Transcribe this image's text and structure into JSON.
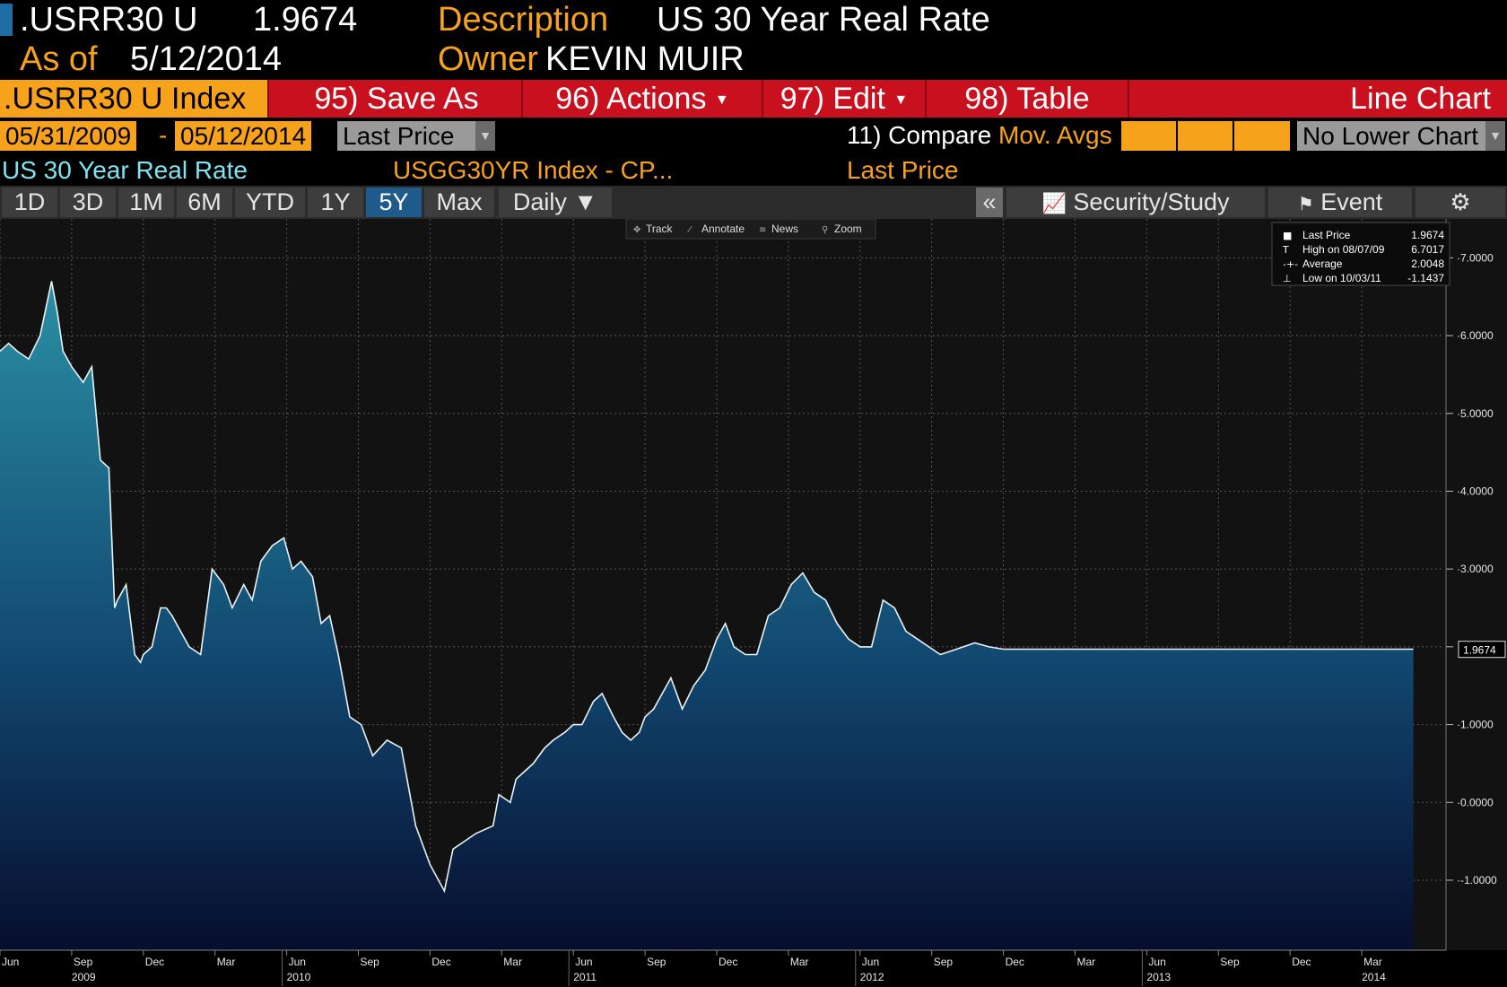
{
  "header": {
    "ticker": ".USRR30 U",
    "last": "1.9674",
    "description_label": "Description",
    "description": "US 30 Year Real Rate",
    "asof_label": "As of",
    "asof": "5/12/2014",
    "owner_label": "Owner",
    "owner": "KEVIN MUIR"
  },
  "menu": {
    "index": ".USRR30 U Index",
    "save": "95) Save As",
    "actions": "96) Actions",
    "edit": "97) Edit",
    "table": "98) Table",
    "chart_type": "Line Chart"
  },
  "controls": {
    "start": "05/31/2009",
    "dash": "-",
    "end": "05/12/2014",
    "field": "Last Price",
    "compare": "11) Compare",
    "movavgs": "Mov. Avgs",
    "lower": "No Lower Chart"
  },
  "legend_row": {
    "series": "US 30 Year Real Rate",
    "source": "USGG30YR Index - CP...",
    "field": "Last Price"
  },
  "toolbar": {
    "periods": [
      "1D",
      "3D",
      "1M",
      "6M",
      "YTD",
      "1Y",
      "5Y",
      "Max"
    ],
    "active": "5Y",
    "freq": "Daily ▼",
    "collapse": "«",
    "security": "Security/Study",
    "event": "Event"
  },
  "subtools": [
    "Track",
    "Annotate",
    "News",
    "Zoom"
  ],
  "stats": {
    "rows": [
      {
        "label": "Last Price",
        "value": "1.9674"
      },
      {
        "label": "High on 08/07/09",
        "value": "6.7017"
      },
      {
        "label": "Average",
        "value": "2.0048"
      },
      {
        "label": "Low on 10/03/11",
        "value": "-1.1437"
      }
    ]
  },
  "colors": {
    "accent": "#f7a21b",
    "menu": "#c8101e",
    "cyan": "#7fe3f0",
    "active_tab": "#1e5a8a"
  },
  "chart_data": {
    "type": "area",
    "ylim": [
      -1.9,
      7.5
    ],
    "yticks": [
      "7.0000",
      "6.0000",
      "5.0000",
      "4.0000",
      "3.0000",
      "2.0000",
      "1.0000",
      "0.0000",
      "-1.0000"
    ],
    "ytick_values": [
      7,
      6,
      5,
      4,
      3,
      2,
      1,
      0,
      -1
    ],
    "last_label": "1.9674",
    "last_value": 1.9674,
    "grid": true,
    "x_months": [
      "Jun",
      "Sep",
      "Dec",
      "Mar",
      "Jun",
      "Sep",
      "Dec",
      "Mar",
      "Jun",
      "Sep",
      "Dec",
      "Mar",
      "Jun",
      "Sep",
      "Dec",
      "Mar",
      "Jun",
      "Sep",
      "Dec",
      "Mar"
    ],
    "x_month_t": [
      0.0,
      0.25,
      0.5,
      0.75,
      1.0,
      1.25,
      1.5,
      1.75,
      2.0,
      2.25,
      2.5,
      2.75,
      3.0,
      3.25,
      3.5,
      3.75,
      4.0,
      4.25,
      4.5,
      4.75
    ],
    "x_years": [
      "2009",
      "2010",
      "2011",
      "2012",
      "2013",
      "2014"
    ],
    "x_year_t": [
      0.25,
      1.0,
      2.0,
      3.0,
      4.0,
      4.75
    ],
    "series": [
      {
        "t": [
          0.0,
          0.03,
          0.06,
          0.1,
          0.14,
          0.18,
          0.2,
          0.22,
          0.25,
          0.29,
          0.32,
          0.35,
          0.38,
          0.4,
          0.41,
          0.44,
          0.47,
          0.49,
          0.5,
          0.53,
          0.56,
          0.58,
          0.6,
          0.63,
          0.66,
          0.7,
          0.74,
          0.78,
          0.81,
          0.85,
          0.88,
          0.91,
          0.95,
          0.99,
          1.02,
          1.05,
          1.09,
          1.12,
          1.15,
          1.18,
          1.22,
          1.26,
          1.3,
          1.35,
          1.4,
          1.45,
          1.5,
          1.55,
          1.58,
          1.62,
          1.66,
          1.72,
          1.74,
          1.78,
          1.8,
          1.83,
          1.86,
          1.9,
          1.93,
          1.97,
          2.0,
          2.03,
          2.07,
          2.1,
          2.14,
          2.17,
          2.2,
          2.23,
          2.25,
          2.28,
          2.31,
          2.34,
          2.38,
          2.42,
          2.46,
          2.5,
          2.53,
          2.56,
          2.6,
          2.64,
          2.68,
          2.72,
          2.76,
          2.8,
          2.84,
          2.88,
          2.92,
          2.96,
          3.0,
          3.04,
          3.08,
          3.12,
          3.16,
          3.2,
          3.24,
          3.28,
          3.32,
          3.36,
          3.4,
          3.45,
          3.5,
          3.55,
          3.6,
          3.65,
          3.7,
          3.75,
          3.79,
          3.83,
          3.87,
          3.9,
          3.94,
          3.98,
          4.02,
          4.06,
          4.1,
          4.14,
          4.18,
          4.22,
          4.26,
          4.3,
          4.34,
          4.38,
          4.42,
          4.46,
          4.5,
          4.53,
          4.56,
          4.6,
          4.64,
          4.68,
          4.71,
          4.74,
          4.77,
          4.8,
          4.83,
          4.86,
          4.9,
          4.93
        ],
        "y": [
          5.8,
          5.9,
          5.8,
          5.7,
          6.0,
          6.7,
          6.3,
          5.8,
          5.6,
          5.4,
          5.6,
          4.4,
          4.3,
          2.5,
          2.6,
          2.8,
          1.9,
          1.8,
          1.9,
          2.0,
          2.5,
          2.5,
          2.4,
          2.2,
          2.0,
          1.9,
          3.0,
          2.8,
          2.5,
          2.8,
          2.6,
          3.1,
          3.3,
          3.4,
          3.0,
          3.1,
          2.9,
          2.3,
          2.4,
          1.9,
          1.1,
          1.0,
          0.6,
          0.8,
          0.7,
          -0.3,
          -0.8,
          -1.14,
          -0.6,
          -0.5,
          -0.4,
          -0.3,
          0.1,
          0.0,
          0.3,
          0.4,
          0.5,
          0.7,
          0.8,
          0.9,
          1.0,
          1.0,
          1.3,
          1.4,
          1.1,
          0.9,
          0.8,
          0.9,
          1.1,
          1.2,
          1.4,
          1.6,
          1.2,
          1.5,
          1.7,
          2.1,
          2.3,
          2.0,
          1.9,
          1.9,
          2.4,
          2.5,
          2.8,
          2.95,
          2.7,
          2.6,
          2.3,
          2.1,
          2.0,
          2.0,
          2.6,
          2.5,
          2.2,
          2.1,
          2.0,
          1.9,
          1.95,
          2.0,
          2.05,
          2.0,
          1.97,
          1.97,
          1.97,
          1.97,
          1.97,
          1.97,
          1.97,
          1.97,
          1.97,
          1.97,
          1.97,
          1.97,
          1.97,
          1.97,
          1.97,
          1.97,
          1.97,
          1.97,
          1.97,
          1.97,
          1.97,
          1.97,
          1.97,
          1.97,
          1.97,
          1.97,
          1.97,
          1.97,
          1.97,
          1.97,
          1.97,
          1.97,
          1.97,
          1.97,
          1.97,
          1.97,
          1.97,
          1.97
        ]
      }
    ]
  }
}
